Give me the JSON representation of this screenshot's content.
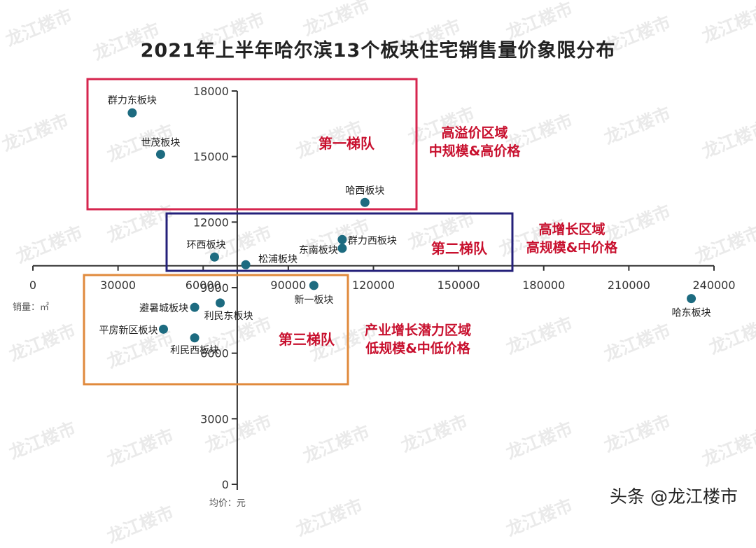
{
  "title": "2021年上半年哈尔滨13个板块住宅销售量价象限分布",
  "watermark": "龙江楼市",
  "footer": "头条 @龙江楼市",
  "colors": {
    "point": "#1d6b80",
    "axis": "#333333",
    "tier1_box": "#d6254e",
    "tier2_box": "#24207a",
    "tier3_box": "#e08a3c",
    "label_red": "#c8102e"
  },
  "chart_data": {
    "type": "scatter",
    "title": "2021年上半年哈尔滨13个板块住宅销售量价象限分布",
    "xlabel": "销量：㎡",
    "ylabel": "均价：元",
    "xlim": [
      0,
      240000
    ],
    "ylim": [
      0,
      18000
    ],
    "x_ticks": [
      0,
      30000,
      60000,
      90000,
      120000,
      150000,
      180000,
      210000,
      240000
    ],
    "y_ticks": [
      0,
      3000,
      6000,
      9000,
      12000,
      15000,
      18000
    ],
    "x_axis_crosses_y_at": 10000,
    "y_axis_crosses_x_at": 72000,
    "grid": false,
    "points": [
      {
        "name": "群力东板块",
        "x": 35000,
        "y": 17000
      },
      {
        "name": "世茂板块",
        "x": 45000,
        "y": 15100
      },
      {
        "name": "哈西板块",
        "x": 117000,
        "y": 12900
      },
      {
        "name": "群力西板块",
        "x": 109000,
        "y": 11200
      },
      {
        "name": "东南板块",
        "x": 109000,
        "y": 10800
      },
      {
        "name": "环西板块",
        "x": 64000,
        "y": 10400
      },
      {
        "name": "松浦板块",
        "x": 75000,
        "y": 10050
      },
      {
        "name": "新一板块",
        "x": 99000,
        "y": 9100
      },
      {
        "name": "哈东板块",
        "x": 232000,
        "y": 8500
      },
      {
        "name": "避暑城板块",
        "x": 57000,
        "y": 8100
      },
      {
        "name": "利民东板块",
        "x": 66000,
        "y": 8300
      },
      {
        "name": "平房新区板块",
        "x": 46000,
        "y": 7100
      },
      {
        "name": "利民西板块",
        "x": 57000,
        "y": 6700
      }
    ],
    "annotations": [
      {
        "name": "第一梯队",
        "desc": [
          "高溢价区域",
          "中规模&高价格"
        ]
      },
      {
        "name": "第二梯队",
        "desc": [
          "高增长区域",
          "高规模&中价格"
        ]
      },
      {
        "name": "第三梯队",
        "desc": [
          "产业增长潜力区域",
          "低规模&中低价格"
        ]
      }
    ]
  }
}
